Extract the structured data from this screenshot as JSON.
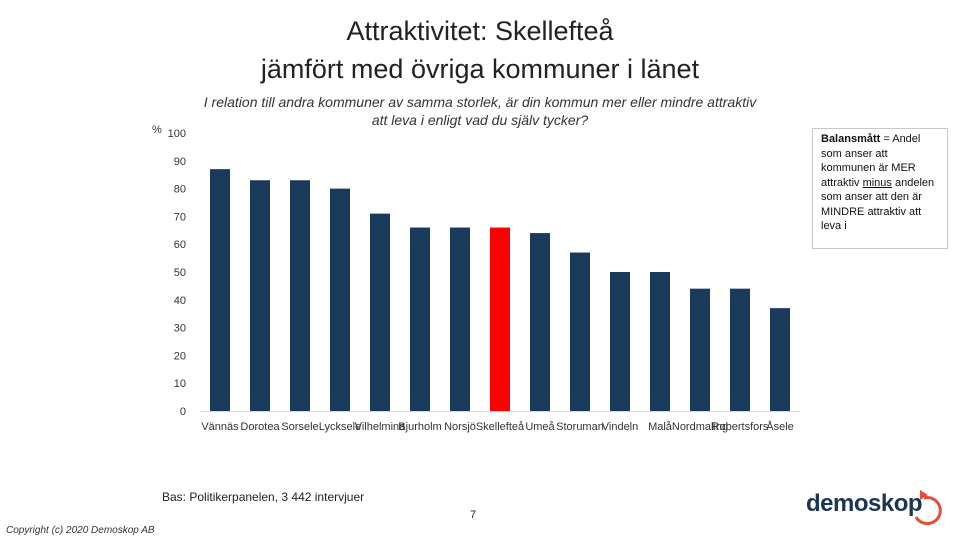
{
  "header": {
    "title_line1": "Attraktivitet: Skellefteå",
    "title_line2": "jämfört med övriga kommuner i länet",
    "question_line1": "I relation till andra kommuner av samma storlek, är din kommun mer eller mindre attraktiv",
    "question_line2": "att leva i enligt vad du själv tycker?"
  },
  "note": {
    "term": "Balansmått",
    "text_before": "= Andel som anser att kommunen är MER attraktiv",
    "minus": "minus",
    "text_after": "andelen som anser att den är MINDRE attraktiv att leva i"
  },
  "chart_data": {
    "type": "bar",
    "ylabel": "%",
    "ylim": [
      0,
      100
    ],
    "yticks": [
      0,
      10,
      20,
      30,
      40,
      50,
      60,
      70,
      80,
      90,
      100
    ],
    "grid": false,
    "categories": [
      "Vännäs",
      "Dorotea",
      "Sorsele",
      "Lycksele",
      "Vilhelmina",
      "Bjurholm",
      "Norsjö",
      "Skellefteå",
      "Umeå",
      "Storuman",
      "Vindeln",
      "Malå",
      "Nordmaling",
      "Robertsfors",
      "Åsele"
    ],
    "values": [
      87,
      83,
      83,
      80,
      71,
      66,
      66,
      66,
      64,
      57,
      50,
      50,
      44,
      44,
      37
    ],
    "colors": {
      "default": "#1a3a5c",
      "highlight": "#ff0000",
      "highlight_category": "Skellefteå",
      "axis": "#d9d9d9"
    }
  },
  "footer": {
    "base": "Bas: Politikerpanelen, 3 442 intervjuer",
    "page": "7",
    "copyright": "Copyright (c) 2020 Demoskop AB",
    "logo_text": "demoskop",
    "logo_color": "#1b3553",
    "logo_accent": "#e64c3c"
  }
}
